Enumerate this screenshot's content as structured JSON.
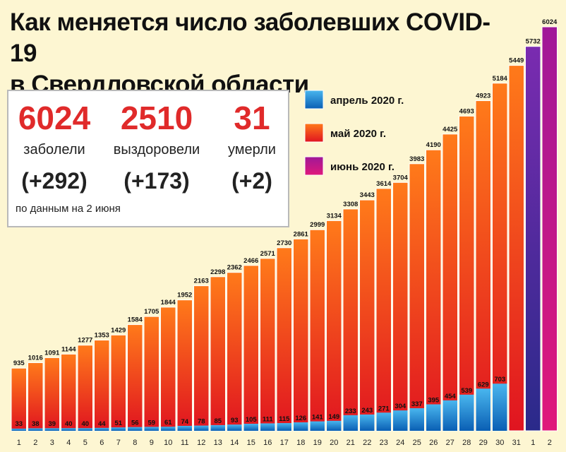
{
  "title_line1": "Как  меняется число  заболевших COVID-19",
  "title_line2": "в Свердловской области",
  "stats": {
    "cases": {
      "value": "6024",
      "label": "заболели",
      "delta": "(+292)"
    },
    "recovered": {
      "value": "2510",
      "label": "выздоровели",
      "delta": "(+173)"
    },
    "deaths": {
      "value": "31",
      "label": "умерли",
      "delta": "(+2)"
    },
    "note": "по данным на 2 июня"
  },
  "colors": {
    "april_top": "#49b6ee",
    "april_bottom": "#0a5fb4",
    "may_top": "#ff7a1a",
    "may_bottom": "#e01420",
    "june_top": "#7a2bb0",
    "june_bottom": "#2a2a8a",
    "june_last_top": "#a01898",
    "june_last_bottom": "#e0187a",
    "highlight": "#e02a2a"
  },
  "chart_data": {
    "type": "bar",
    "title": "Как меняется число заболевших COVID-19 в Свердловской области",
    "xlabel": "",
    "ylabel": "",
    "ylim": [
      0,
      6024
    ],
    "legend": [
      {
        "name": "апрель 2020 г.",
        "key": "april"
      },
      {
        "name": "май 2020 г.",
        "key": "may"
      },
      {
        "name": "июнь 2020 г.",
        "key": "june"
      }
    ],
    "legend_position": "top-right",
    "categories": [
      "1",
      "2",
      "3",
      "4",
      "5",
      "6",
      "7",
      "8",
      "9",
      "10",
      "11",
      "12",
      "13",
      "14",
      "15",
      "16",
      "17",
      "18",
      "19",
      "20",
      "21",
      "22",
      "23",
      "24",
      "25",
      "26",
      "27",
      "28",
      "29",
      "30",
      "31",
      "1",
      "2"
    ],
    "series": [
      {
        "name": "май 2020 г.",
        "values": [
          935,
          1016,
          1091,
          1144,
          1277,
          1353,
          1429,
          1584,
          1705,
          1844,
          1952,
          2163,
          2298,
          2362,
          2466,
          2571,
          2730,
          2861,
          2999,
          3134,
          3308,
          3443,
          3614,
          3704,
          3983,
          4190,
          4425,
          4693,
          4923,
          5184,
          5449,
          null,
          null
        ]
      },
      {
        "name": "апрель 2020 г.",
        "values": [
          33,
          38,
          39,
          40,
          40,
          44,
          51,
          56,
          59,
          61,
          74,
          78,
          85,
          93,
          105,
          111,
          115,
          126,
          141,
          149,
          233,
          243,
          271,
          304,
          337,
          395,
          454,
          539,
          629,
          703,
          null,
          null,
          null
        ]
      },
      {
        "name": "июнь 2020 г.",
        "values": [
          null,
          null,
          null,
          null,
          null,
          null,
          null,
          null,
          null,
          null,
          null,
          null,
          null,
          null,
          null,
          null,
          null,
          null,
          null,
          null,
          null,
          null,
          null,
          null,
          null,
          null,
          null,
          null,
          null,
          null,
          null,
          5732,
          6024
        ]
      }
    ]
  }
}
